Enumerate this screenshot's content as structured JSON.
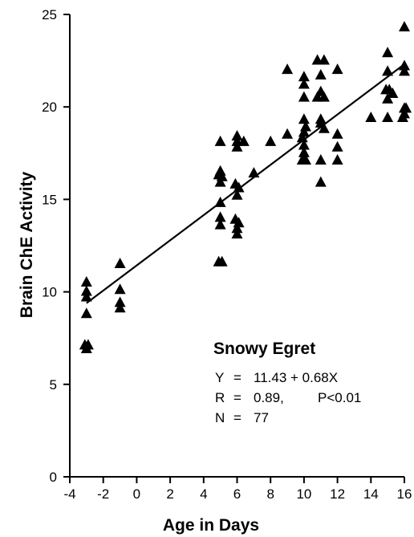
{
  "chart_data": {
    "type": "scatter",
    "title": "",
    "xlabel": "Age in Days",
    "ylabel": "Brain ChE Activity",
    "xlim": [
      -4,
      16
    ],
    "ylim": [
      0,
      25
    ],
    "xticks": [
      "-4",
      "-2",
      "0",
      "2",
      "4",
      "6",
      "8",
      "10",
      "12",
      "14",
      "16"
    ],
    "yticks": [
      "0",
      "5",
      "10",
      "15",
      "20",
      "25"
    ],
    "marker": "triangle",
    "grid": false,
    "points": [
      [
        -3,
        10.5
      ],
      [
        -3,
        10.0
      ],
      [
        -3,
        9.7
      ],
      [
        -3,
        8.8
      ],
      [
        -3.1,
        7.1
      ],
      [
        -2.9,
        7.1
      ],
      [
        -3,
        6.9
      ],
      [
        -1,
        11.5
      ],
      [
        -1,
        10.1
      ],
      [
        -1,
        9.4
      ],
      [
        -1,
        9.1
      ],
      [
        5,
        18.1
      ],
      [
        5,
        16.5
      ],
      [
        4.9,
        16.3
      ],
      [
        5,
        15.9
      ],
      [
        5.1,
        16.2
      ],
      [
        5,
        14.8
      ],
      [
        5,
        14.0
      ],
      [
        5,
        13.6
      ],
      [
        4.9,
        11.6
      ],
      [
        5.1,
        11.6
      ],
      [
        6,
        18.4
      ],
      [
        6,
        18.1
      ],
      [
        6,
        17.8
      ],
      [
        5.9,
        15.8
      ],
      [
        6.1,
        15.6
      ],
      [
        6,
        15.2
      ],
      [
        5.9,
        13.9
      ],
      [
        6.1,
        13.7
      ],
      [
        6,
        13.4
      ],
      [
        6,
        13.1
      ],
      [
        6.4,
        18.1
      ],
      [
        7,
        16.4
      ],
      [
        8,
        18.1
      ],
      [
        9,
        22.0
      ],
      [
        9,
        18.5
      ],
      [
        10,
        21.6
      ],
      [
        10,
        21.2
      ],
      [
        10,
        20.5
      ],
      [
        10,
        19.3
      ],
      [
        10.1,
        18.9
      ],
      [
        10,
        18.6
      ],
      [
        9.9,
        18.3
      ],
      [
        10,
        17.9
      ],
      [
        10,
        17.5
      ],
      [
        9.9,
        17.1
      ],
      [
        10.1,
        17.1
      ],
      [
        10.8,
        22.5
      ],
      [
        11.2,
        22.5
      ],
      [
        11,
        21.7
      ],
      [
        11,
        20.8
      ],
      [
        10.8,
        20.5
      ],
      [
        11.2,
        20.5
      ],
      [
        11,
        19.3
      ],
      [
        11,
        19.1
      ],
      [
        11.2,
        18.8
      ],
      [
        11,
        17.1
      ],
      [
        11,
        15.9
      ],
      [
        12,
        22.0
      ],
      [
        12,
        18.5
      ],
      [
        12,
        17.8
      ],
      [
        12,
        17.1
      ],
      [
        14,
        19.4
      ],
      [
        15,
        22.9
      ],
      [
        15,
        21.9
      ],
      [
        14.9,
        20.9
      ],
      [
        15.1,
        20.9
      ],
      [
        15,
        20.4
      ],
      [
        15.3,
        20.7
      ],
      [
        15,
        19.4
      ],
      [
        16,
        24.3
      ],
      [
        16,
        22.2
      ],
      [
        16,
        21.9
      ],
      [
        16,
        19.9
      ],
      [
        16,
        19.6
      ],
      [
        15.9,
        19.4
      ],
      [
        16.1,
        19.9
      ]
    ],
    "fit": {
      "x_range": [
        -3,
        16
      ],
      "intercept": 11.43,
      "slope": 0.68
    },
    "annotations": {
      "title": "Snowy Egret",
      "equation_y": "Y",
      "equation_eq": "=",
      "equation_rhs": "11.43 + 0.68X",
      "r_label": "R",
      "r_eq": "=",
      "r_value": "0.89,",
      "p_value": "P<0.01",
      "n_label": "N",
      "n_eq": "=",
      "n_value": "77"
    }
  }
}
